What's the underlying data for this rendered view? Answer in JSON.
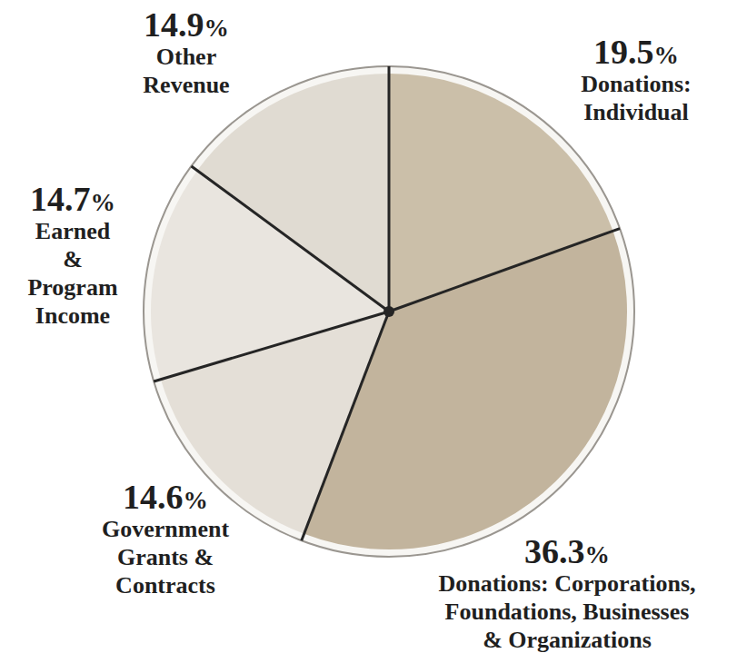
{
  "chart_data": {
    "type": "pie",
    "categories": [
      "Donations: Individual",
      "Donations: Corporations, Foundations, Businesses & Organizations",
      "Government Grants & Contracts",
      "Earned & Program Income",
      "Other Revenue"
    ],
    "values": [
      19.5,
      36.3,
      14.6,
      14.7,
      14.9
    ],
    "value_labels": [
      "19.5%",
      "36.3%",
      "14.6%",
      "14.7%",
      "14.9%"
    ],
    "colors": [
      "#cbbfa9",
      "#c2b49d",
      "#e4dfd7",
      "#e9e5df",
      "#e0dbd2"
    ],
    "data_labels": true
  }
}
